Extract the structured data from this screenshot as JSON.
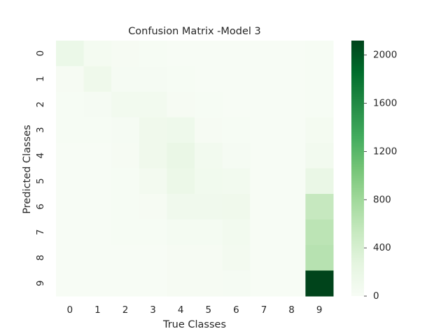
{
  "chart_data": {
    "type": "heatmap",
    "title": "Confusion Matrix -Model 3",
    "xlabel": "True Classes",
    "ylabel": "Predicted Classes",
    "x_categories": [
      "0",
      "1",
      "2",
      "3",
      "4",
      "5",
      "6",
      "7",
      "8",
      "9"
    ],
    "y_categories": [
      "0",
      "1",
      "2",
      "3",
      "4",
      "5",
      "6",
      "7",
      "8",
      "9"
    ],
    "values": [
      [
        170,
        50,
        20,
        10,
        5,
        5,
        5,
        0,
        0,
        10
      ],
      [
        20,
        120,
        30,
        25,
        10,
        5,
        5,
        0,
        0,
        10
      ],
      [
        15,
        30,
        80,
        70,
        20,
        10,
        5,
        0,
        0,
        10
      ],
      [
        10,
        10,
        30,
        110,
        130,
        20,
        10,
        0,
        0,
        50
      ],
      [
        5,
        5,
        20,
        110,
        190,
        70,
        30,
        0,
        0,
        80
      ],
      [
        5,
        5,
        10,
        60,
        160,
        90,
        80,
        0,
        0,
        190
      ],
      [
        5,
        5,
        10,
        20,
        100,
        100,
        110,
        0,
        0,
        540
      ],
      [
        5,
        5,
        10,
        10,
        40,
        40,
        80,
        0,
        0,
        610
      ],
      [
        5,
        5,
        5,
        5,
        20,
        20,
        60,
        0,
        0,
        640
      ],
      [
        5,
        5,
        5,
        5,
        20,
        20,
        30,
        0,
        0,
        2120
      ]
    ],
    "colorbar": {
      "min": 0,
      "max": 2120,
      "ticks": [
        0,
        400,
        800,
        1200,
        1600,
        2000
      ],
      "tick_labels": [
        "0",
        "400",
        "800",
        "1200",
        "1600",
        "2000"
      ],
      "colormap": "Greens",
      "color_low": "#f7fcf5",
      "color_high": "#00441b"
    }
  }
}
